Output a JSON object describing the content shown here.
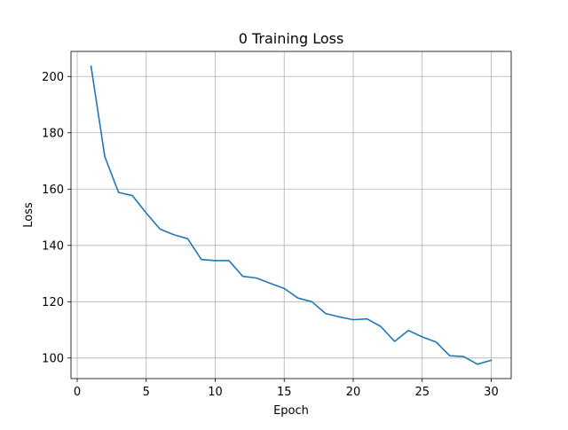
{
  "chart_data": {
    "type": "line",
    "title": "0 Training Loss",
    "xlabel": "Epoch",
    "ylabel": "Loss",
    "xlim": [
      -0.45,
      31.45
    ],
    "ylim": [
      92.7,
      208.9
    ],
    "xticks": [
      0,
      5,
      10,
      15,
      20,
      25,
      30
    ],
    "yticks": [
      100,
      120,
      140,
      160,
      180,
      200
    ],
    "grid": true,
    "series": [
      {
        "name": "Training Loss",
        "color": "#1f77b4",
        "x": [
          1,
          2,
          3,
          4,
          5,
          6,
          7,
          8,
          9,
          10,
          11,
          12,
          13,
          14,
          15,
          16,
          17,
          18,
          19,
          20,
          21,
          22,
          23,
          24,
          25,
          26,
          27,
          28,
          29,
          30
        ],
        "values": [
          203.7,
          171.5,
          158.8,
          157.7,
          151.5,
          145.8,
          143.8,
          142.4,
          135.0,
          134.6,
          134.6,
          129.0,
          128.4,
          126.5,
          124.7,
          121.3,
          120.0,
          115.8,
          114.6,
          113.6,
          113.9,
          111.2,
          105.9,
          109.8,
          107.5,
          105.7,
          100.8,
          100.5,
          97.8,
          99.2
        ]
      }
    ]
  }
}
